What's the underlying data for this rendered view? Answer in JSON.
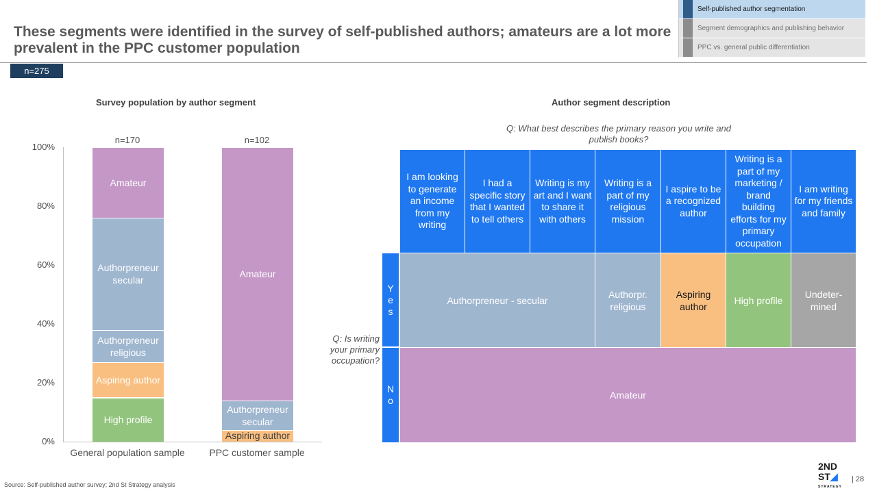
{
  "title": "These segments were identified in the survey of self-published authors; amateurs are a lot more prevalent in the PPC customer population",
  "sample_badge": "n=275",
  "nav": [
    {
      "label": "Self-published author segmentation",
      "active": true
    },
    {
      "label": "Segment demographics and publishing behavior",
      "active": false
    },
    {
      "label": "PPC  vs. general public differentiation",
      "active": false
    }
  ],
  "chart_data": {
    "type": "bar",
    "stacked": true,
    "title": "Survey population by author segment",
    "xlabel": "",
    "ylabel": "",
    "ylim": [
      0,
      100
    ],
    "yticks": [
      "0%",
      "20%",
      "40%",
      "60%",
      "80%",
      "100%"
    ],
    "categories": [
      "General population sample",
      "PPC customer sample"
    ],
    "counts": [
      "n=170",
      "n=102"
    ],
    "series": [
      {
        "name": "High profile",
        "label": "High profile",
        "color": "#92c47d",
        "values": [
          15,
          0
        ]
      },
      {
        "name": "Aspiring author",
        "label": "Aspiring author",
        "color": "#f9bf80",
        "values": [
          12,
          4
        ]
      },
      {
        "name": "Authorpreneur religious",
        "label": "Authorpreneur religious",
        "color": "#9fb6cf",
        "values": [
          11,
          0
        ]
      },
      {
        "name": "Authorpreneur secular",
        "label": "Authorpreneur secular",
        "color": "#9fb6cf",
        "values": [
          38,
          10
        ]
      },
      {
        "name": "Amateur",
        "label": "Amateur",
        "color": "#c497c7",
        "values": [
          24,
          86
        ]
      }
    ]
  },
  "matrix": {
    "title": "Author segment description",
    "question_top": "Q: What best describes the primary reason you write and publish books?",
    "question_left": "Q: Is writing your primary occupation?",
    "headers": [
      "I am looking to generate an income from my writing",
      "I had a specific story that I wanted to tell others",
      "Writing is my art and I want to share it with others",
      "Writing is a part of my religious mission",
      "I aspire to be a recognized author",
      "Writing is a part of my marketing / brand building efforts for my primary occupation",
      "I am writing for my friends and family"
    ],
    "yes_label": "Y e s",
    "no_label": "N o",
    "yes_cells": [
      {
        "label": "Authorpreneur - secular",
        "color": "#9fb6cf",
        "text_color": "#ffffff"
      },
      {
        "label": "Authorpr. religious",
        "color": "#9fb6cf",
        "text_color": "#ffffff"
      },
      {
        "label": "Aspiring author",
        "color": "#f9bf80",
        "text_color": "#1a1a1a"
      },
      {
        "label": "High profile",
        "color": "#92c47d",
        "text_color": "#ffffff"
      },
      {
        "label": "Undeter-mined",
        "color": "#a6a6a6",
        "text_color": "#ffffff"
      }
    ],
    "no_cell": {
      "label": "Amateur",
      "color": "#c497c7",
      "text_color": "#ffffff"
    }
  },
  "footer": {
    "source": "Source: Self-published author survey; 2nd St Strategy analysis",
    "logo_top": "2ND",
    "logo_bottom": "ST",
    "logo_sub": "STRATEGY",
    "page_number": "| 28"
  },
  "colors": {
    "header_blue": "#1f78f0",
    "navy": "#1f3f5f"
  }
}
